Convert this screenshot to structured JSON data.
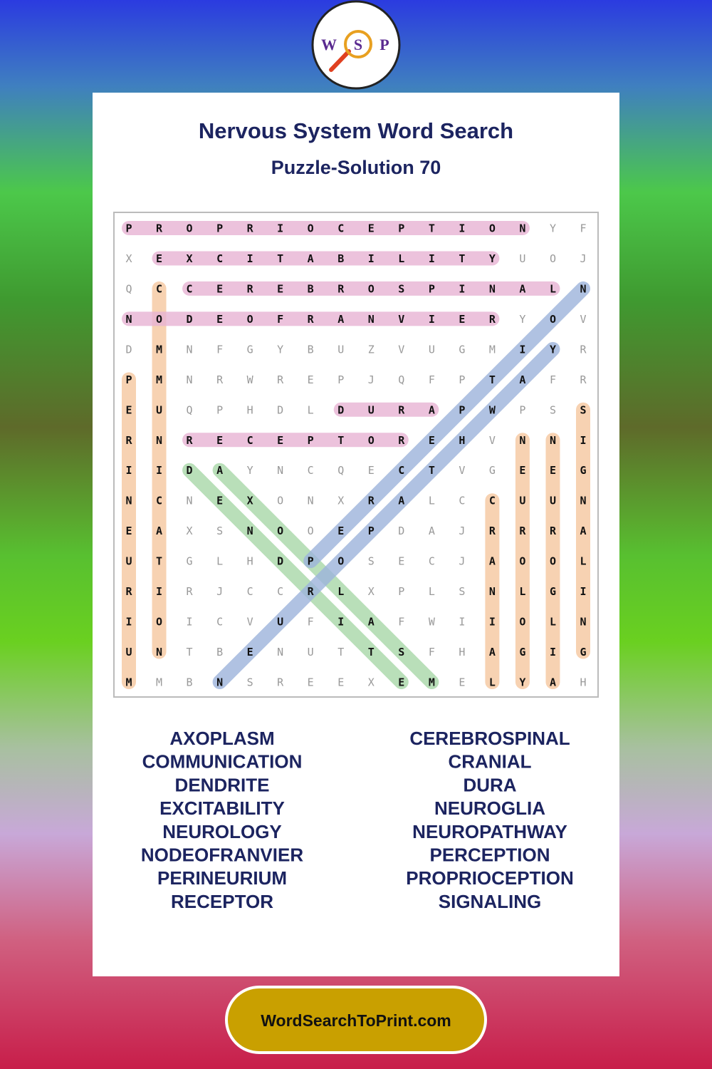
{
  "logo": {
    "letters": [
      "W",
      "S",
      "P"
    ]
  },
  "header": {
    "title": "Nervous System Word Search",
    "subtitle": "Puzzle-Solution 70"
  },
  "grid": {
    "rows": [
      [
        "P",
        "R",
        "O",
        "P",
        "R",
        "I",
        "O",
        "C",
        "E",
        "P",
        "T",
        "I",
        "O",
        "N",
        "Y",
        "F"
      ],
      [
        "X",
        "E",
        "X",
        "C",
        "I",
        "T",
        "A",
        "B",
        "I",
        "L",
        "I",
        "T",
        "Y",
        "U",
        "O",
        "J"
      ],
      [
        "Q",
        "C",
        "C",
        "E",
        "R",
        "E",
        "B",
        "R",
        "O",
        "S",
        "P",
        "I",
        "N",
        "A",
        "L",
        "N"
      ],
      [
        "N",
        "O",
        "D",
        "E",
        "O",
        "F",
        "R",
        "A",
        "N",
        "V",
        "I",
        "E",
        "R",
        "Y",
        "O",
        "V"
      ],
      [
        "D",
        "M",
        "N",
        "F",
        "G",
        "Y",
        "B",
        "U",
        "Z",
        "V",
        "U",
        "G",
        "M",
        "I",
        "Y",
        "R"
      ],
      [
        "P",
        "M",
        "N",
        "R",
        "W",
        "R",
        "E",
        "P",
        "J",
        "Q",
        "F",
        "P",
        "T",
        "A",
        "F",
        "R"
      ],
      [
        "E",
        "U",
        "Q",
        "P",
        "H",
        "D",
        "L",
        "D",
        "U",
        "R",
        "A",
        "P",
        "W",
        "P",
        "S",
        "S"
      ],
      [
        "R",
        "N",
        "R",
        "E",
        "C",
        "E",
        "P",
        "T",
        "O",
        "R",
        "E",
        "H",
        "V",
        "N",
        "N",
        "I"
      ],
      [
        "I",
        "I",
        "D",
        "A",
        "Y",
        "N",
        "C",
        "Q",
        "E",
        "C",
        "T",
        "V",
        "G",
        "E",
        "E",
        "G"
      ],
      [
        "N",
        "C",
        "N",
        "E",
        "X",
        "O",
        "N",
        "X",
        "R",
        "A",
        "L",
        "C",
        "C",
        "U",
        "U",
        "N"
      ],
      [
        "E",
        "A",
        "X",
        "S",
        "N",
        "O",
        "O",
        "E",
        "P",
        "D",
        "A",
        "J",
        "R",
        "R",
        "R",
        "A"
      ],
      [
        "U",
        "T",
        "G",
        "L",
        "H",
        "D",
        "P",
        "O",
        "S",
        "E",
        "C",
        "J",
        "A",
        "O",
        "O",
        "L"
      ],
      [
        "R",
        "I",
        "R",
        "J",
        "C",
        "C",
        "R",
        "L",
        "X",
        "P",
        "L",
        "S",
        "N",
        "L",
        "G",
        "I"
      ],
      [
        "I",
        "O",
        "I",
        "C",
        "V",
        "U",
        "F",
        "I",
        "A",
        "F",
        "W",
        "I",
        "I",
        "O",
        "L",
        "N"
      ],
      [
        "U",
        "N",
        "T",
        "B",
        "E",
        "N",
        "U",
        "T",
        "T",
        "S",
        "F",
        "H",
        "A",
        "G",
        "I",
        "G"
      ],
      [
        "M",
        "M",
        "B",
        "N",
        "S",
        "R",
        "E",
        "E",
        "X",
        "E",
        "M",
        "E",
        "L",
        "Y",
        "A",
        "H"
      ]
    ]
  },
  "words": {
    "left": [
      "AXOPLASM",
      "COMMUNICATION",
      "DENDRITE",
      "EXCITABILITY",
      "NEUROLOGY",
      "NODEOFRANVIER",
      "PERINEURIUM",
      "RECEPTOR"
    ],
    "right": [
      "CEREBROSPINAL",
      "CRANIAL",
      "DURA",
      "NEUROGLIA",
      "NEUROPATHWAY",
      "PERCEPTION",
      "PROPRIOCEPTION",
      "SIGNALING"
    ]
  },
  "footer": {
    "text": "WordSearchToPrint.com"
  }
}
